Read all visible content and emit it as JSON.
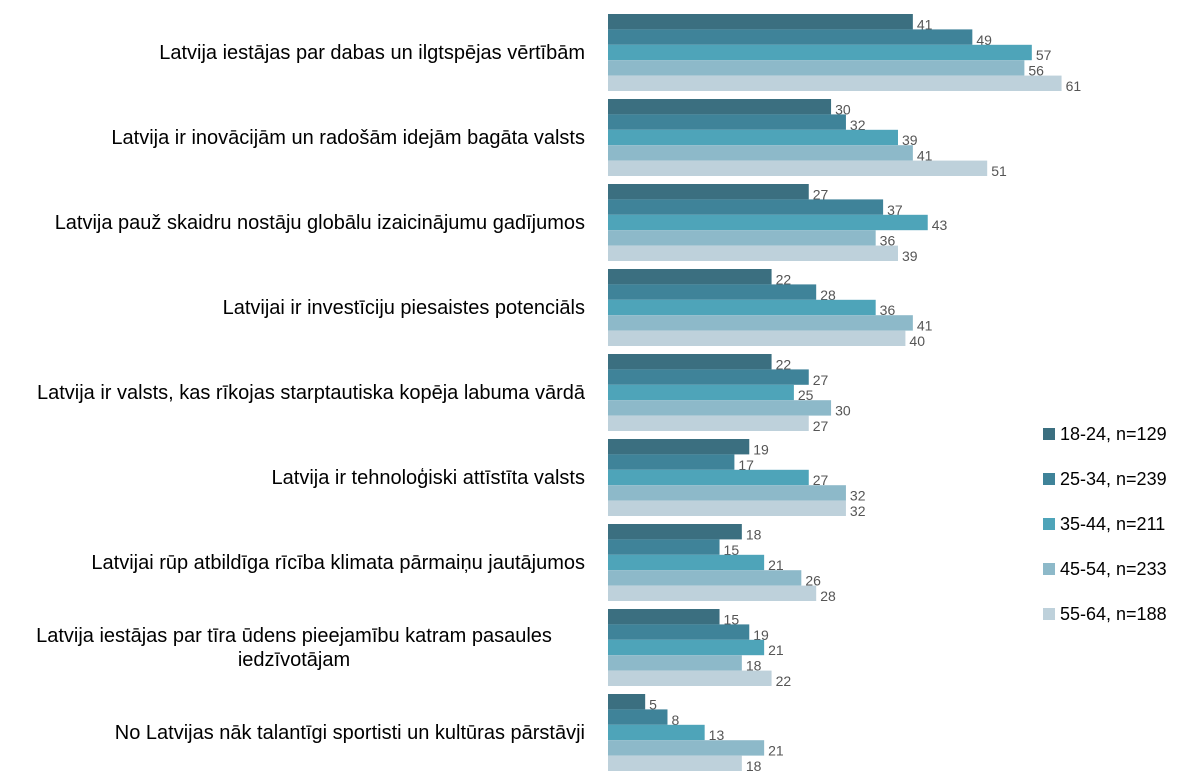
{
  "chart_data": {
    "type": "hbar",
    "categories": [
      "Latvija iestājas par dabas un ilgtspējas vērtībām",
      "Latvija ir inovācijām un radošām idejām bagāta valsts",
      "Latvija pauž skaidru nostāju globālu izaicinājumu gadījumos",
      "Latvijai ir investīciju piesaistes potenciāls",
      "Latvija ir valsts, kas rīkojas starptautiska kopēja labuma vārdā",
      "Latvija ir tehnoloģiski attīstīta valsts",
      "Latvijai rūp atbildīga rīcība klimata pārmaiņu jautājumos",
      "Latvija iestājas par tīra ūdens pieejamību katram pasaules iedzīvotājam",
      "No Latvijas nāk talantīgi sportisti un kultūras pārstāvji"
    ],
    "series": [
      {
        "name": "18-24, n=129",
        "color": "#3b6f80",
        "values": [
          41,
          30,
          27,
          22,
          22,
          19,
          18,
          15,
          5
        ]
      },
      {
        "name": "25-34, n=239",
        "color": "#3f8399",
        "values": [
          49,
          32,
          37,
          28,
          27,
          17,
          15,
          19,
          8
        ]
      },
      {
        "name": "35-44, n=211",
        "color": "#4ea4b9",
        "values": [
          57,
          39,
          43,
          36,
          25,
          27,
          21,
          21,
          13
        ]
      },
      {
        "name": "45-54, n=233",
        "color": "#8db9c9",
        "values": [
          56,
          41,
          36,
          41,
          30,
          32,
          26,
          18,
          21
        ]
      },
      {
        "name": "55-64, n=188",
        "color": "#bed1db",
        "values": [
          61,
          51,
          39,
          40,
          27,
          32,
          28,
          22,
          18
        ]
      }
    ],
    "xlim": [
      0,
      62
    ],
    "legend": "right"
  }
}
